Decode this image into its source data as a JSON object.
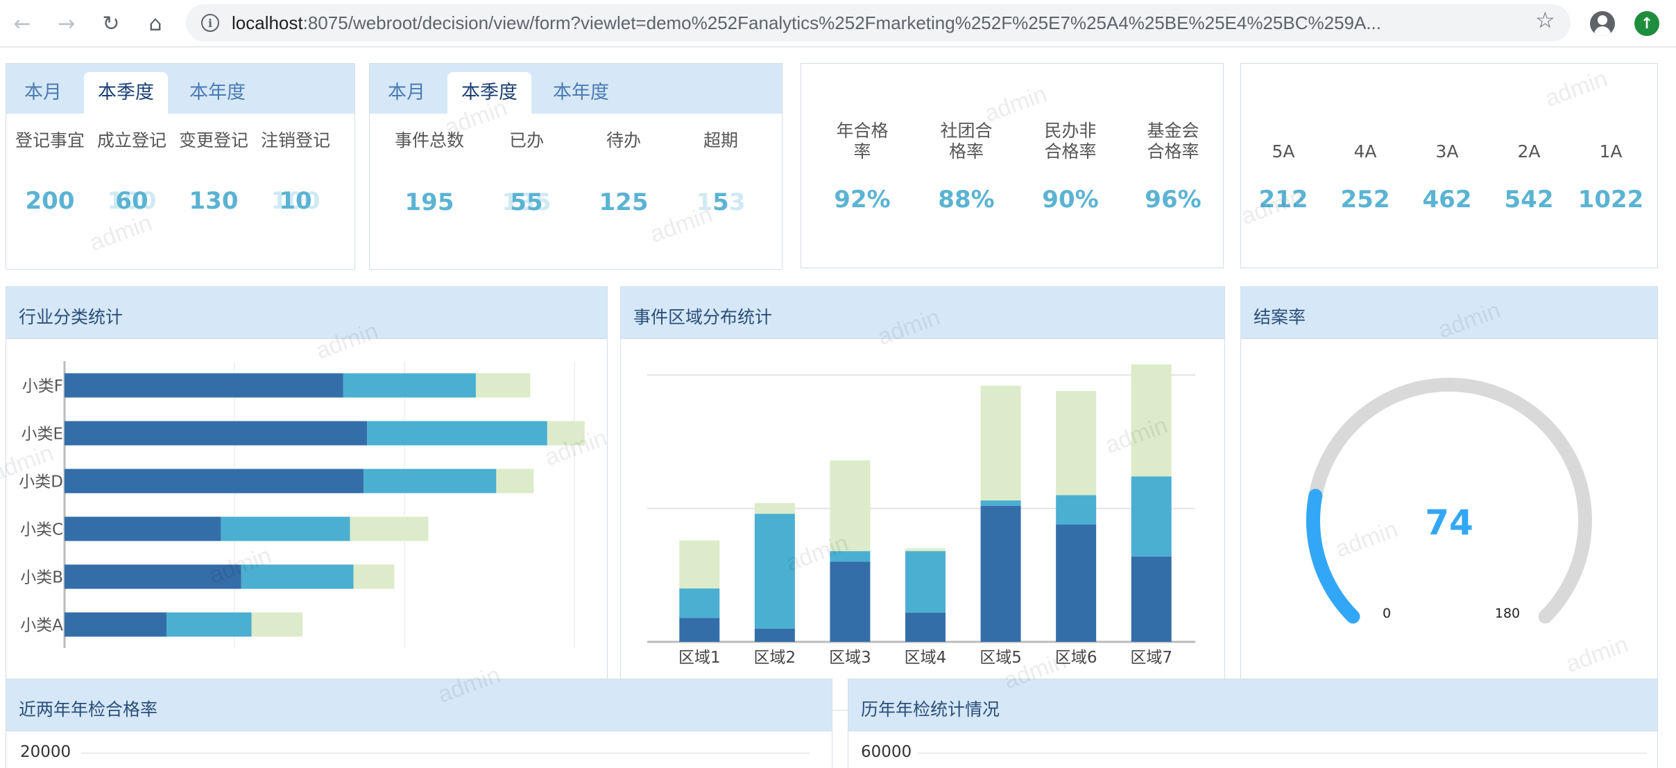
{
  "browser": {
    "url_host": "localhost",
    "url_rest": ":8075/webroot/decision/view/form?viewlet=demo%252Fanalytics%252Fmarketing%252F%25E7%25A4%25BE%25E4%25BC%259A..."
  },
  "watermark_text": "admin",
  "card1": {
    "tabs": [
      "本月",
      "本季度",
      "本年度"
    ],
    "active_tab": 1,
    "labels": [
      "登记事宜",
      "成立登记",
      "变更登记",
      "注销登记"
    ],
    "values": [
      "200",
      "60",
      "130",
      "10"
    ],
    "ghost_values": [
      "200",
      "100",
      "130",
      "100"
    ]
  },
  "card2": {
    "tabs": [
      "本月",
      "本季度",
      "本年度"
    ],
    "active_tab": 1,
    "labels": [
      "事件总数",
      "已办",
      "待办",
      "超期"
    ],
    "values": [
      "195",
      "55",
      "125",
      "5"
    ],
    "ghost_values": [
      "",
      "135",
      "",
      "153"
    ]
  },
  "card3": {
    "labels": [
      [
        "年合格",
        "率"
      ],
      [
        "社团合",
        "格率"
      ],
      [
        "民办非",
        "合格率"
      ],
      [
        "基金会",
        "合格率"
      ]
    ],
    "values": [
      "92%",
      "88%",
      "90%",
      "96%"
    ]
  },
  "card4": {
    "labels": [
      "5A",
      "4A",
      "3A",
      "2A",
      "1A"
    ],
    "values": [
      "212",
      "252",
      "462",
      "542",
      "1022"
    ]
  },
  "industry_panel": {
    "title": "行业分类统计"
  },
  "region_panel": {
    "title": "事件区域分布统计"
  },
  "gauge_panel": {
    "title": "结案率"
  },
  "bottom_left_panel": {
    "title": "近两年年检合格率",
    "y_tick": "20000"
  },
  "bottom_right_panel": {
    "title": "历年年检统计情况",
    "y_tick": "60000"
  },
  "colors": {
    "dark": "#346ea8",
    "mid": "#4bafd1",
    "light": "#dcebc9",
    "gauge": "#33a7f7",
    "track": "#d9d9d9"
  },
  "chart_data": [
    {
      "type": "bar",
      "orientation": "horizontal",
      "stacked": true,
      "categories": [
        "小类F",
        "小类E",
        "小类D",
        "小类C",
        "小类B",
        "小类A"
      ],
      "series": [
        {
          "values": [
            82,
            89,
            88,
            46,
            52,
            30
          ]
        },
        {
          "values": [
            39,
            53,
            39,
            38,
            33,
            25
          ]
        },
        {
          "values": [
            16,
            11,
            11,
            23,
            12,
            15
          ]
        }
      ],
      "xlim": [
        0,
        150
      ]
    },
    {
      "type": "bar",
      "stacked": true,
      "categories": [
        "区域1",
        "区域2",
        "区域3",
        "区域4",
        "区域5",
        "区域6",
        "区域7"
      ],
      "series": [
        {
          "values": [
            9,
            5,
            30,
            11,
            51,
            44,
            32
          ]
        },
        {
          "values": [
            11,
            43,
            4,
            23,
            2,
            11,
            30
          ]
        },
        {
          "values": [
            18,
            4,
            34,
            1,
            43,
            39,
            42
          ]
        }
      ],
      "ylim": [
        0,
        100
      ]
    },
    {
      "type": "gauge",
      "value": 74,
      "min": "0",
      "max": "180",
      "min_value": 0,
      "max_value": 180
    }
  ]
}
